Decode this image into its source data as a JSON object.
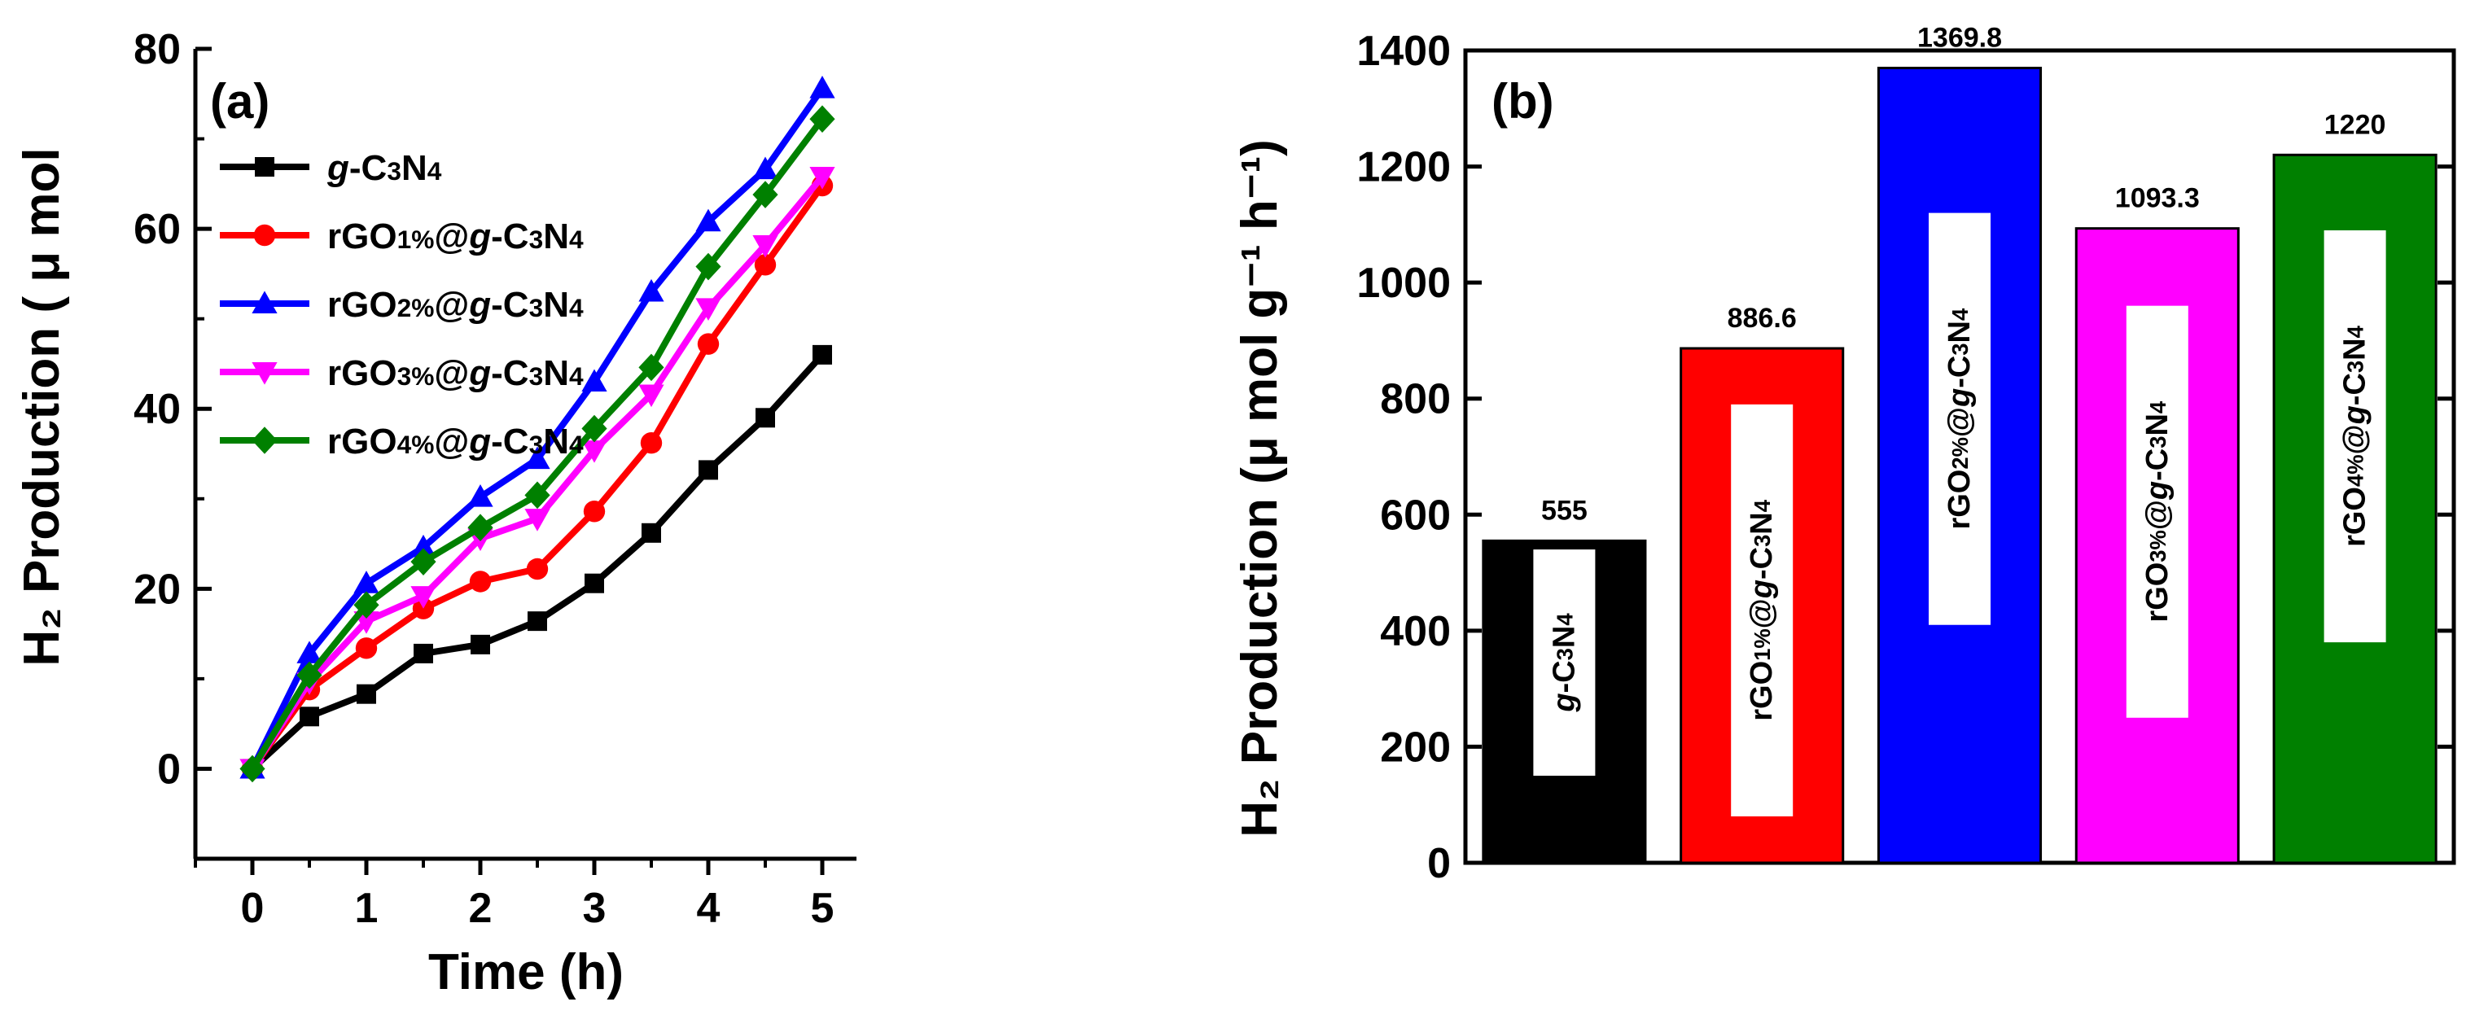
{
  "chart_data": [
    {
      "type": "line",
      "panel_label": "(a)",
      "xlabel": "Time (h)",
      "ylabel": "H₂ Production ( μ mol",
      "xlim": [
        -0.5,
        5.3
      ],
      "ylim": [
        -10,
        80
      ],
      "xticks": [
        0,
        1,
        2,
        3,
        4,
        5
      ],
      "yticks": [
        0,
        20,
        40,
        60,
        80
      ],
      "x": [
        0,
        0.5,
        1,
        1.5,
        2,
        2.5,
        3,
        3.5,
        4,
        4.5,
        5
      ],
      "legend_position": "top-left",
      "series": [
        {
          "name": "g-C3N4",
          "color": "#000000",
          "marker": "square",
          "values": [
            0,
            5.8,
            8.3,
            12.8,
            13.8,
            16.4,
            20.6,
            26.2,
            33.2,
            39.0,
            46.0
          ]
        },
        {
          "name": "rGO1%@g-C3N4",
          "color": "#ff0000",
          "marker": "circle",
          "values": [
            0,
            8.8,
            13.4,
            17.8,
            20.8,
            22.2,
            28.6,
            36.2,
            47.2,
            56.0,
            64.8
          ]
        },
        {
          "name": "rGO2%@g-C3N4",
          "color": "#0000ff",
          "marker": "triangle-up",
          "values": [
            0,
            12.8,
            20.6,
            24.6,
            30.2,
            34.4,
            43.0,
            53.0,
            60.8,
            66.6,
            75.6
          ]
        },
        {
          "name": "rGO3%@g-C3N4",
          "color": "#ff00ff",
          "marker": "triangle-down",
          "values": [
            0,
            9.6,
            16.4,
            19.2,
            25.6,
            27.8,
            35.4,
            41.6,
            51.2,
            58.2,
            65.8
          ]
        },
        {
          "name": "rGO4%@g-C3N4",
          "color": "#008000",
          "marker": "diamond",
          "values": [
            0,
            10.4,
            18.2,
            23.0,
            26.8,
            30.4,
            37.8,
            44.6,
            55.8,
            63.8,
            72.2
          ]
        }
      ],
      "legend_labels": [
        [
          {
            "t": "g",
            "i": true
          },
          {
            "t": "-C"
          },
          {
            "t": "3",
            "s": true
          },
          {
            "t": "N"
          },
          {
            "t": "4",
            "s": true
          }
        ],
        [
          {
            "t": "rGO"
          },
          {
            "t": "1%",
            "s": true
          },
          {
            "t": "@"
          },
          {
            "t": "g",
            "i": true
          },
          {
            "t": "-C"
          },
          {
            "t": "3",
            "s": true
          },
          {
            "t": "N"
          },
          {
            "t": "4",
            "s": true
          }
        ],
        [
          {
            "t": "rGO"
          },
          {
            "t": "2%",
            "s": true
          },
          {
            "t": "@"
          },
          {
            "t": "g",
            "i": true
          },
          {
            "t": "-C"
          },
          {
            "t": "3",
            "s": true
          },
          {
            "t": "N"
          },
          {
            "t": "4",
            "s": true
          }
        ],
        [
          {
            "t": "rGO"
          },
          {
            "t": "3%",
            "s": true
          },
          {
            "t": "@"
          },
          {
            "t": "g",
            "i": true
          },
          {
            "t": "-C"
          },
          {
            "t": "3",
            "s": true
          },
          {
            "t": "N"
          },
          {
            "t": "4",
            "s": true
          }
        ],
        [
          {
            "t": "rGO"
          },
          {
            "t": "4%",
            "s": true
          },
          {
            "t": "@"
          },
          {
            "t": "g",
            "i": true
          },
          {
            "t": "-C"
          },
          {
            "t": "3",
            "s": true
          },
          {
            "t": "N"
          },
          {
            "t": "4",
            "s": true
          }
        ]
      ]
    },
    {
      "type": "bar",
      "panel_label": "(b)",
      "xlabel": "",
      "ylabel": "H₂ Production (μ mol g⁻¹ h⁻¹)",
      "ylim": [
        0,
        1400
      ],
      "yticks": [
        0,
        200,
        400,
        600,
        800,
        1000,
        1200,
        1400
      ],
      "categories": [
        "g-C3N4",
        "rGO1%@g-C3N4",
        "rGO2%@g-C3N4",
        "rGO3%@g-C3N4",
        "rGO4%@g-C3N4"
      ],
      "values": [
        555,
        886.6,
        1369.8,
        1093.3,
        1220
      ],
      "value_labels": [
        "555",
        "886.6",
        "1369.8",
        "1093.3",
        "1220"
      ],
      "colors": [
        "#000000",
        "#ff0000",
        "#0000ff",
        "#ff00ff",
        "#008000"
      ],
      "bar_labels": [
        [
          {
            "t": "g",
            "i": true
          },
          {
            "t": "-C"
          },
          {
            "t": "3",
            "s": true
          },
          {
            "t": "N"
          },
          {
            "t": "4",
            "s": true
          }
        ],
        [
          {
            "t": "rGO"
          },
          {
            "t": "1%",
            "s": true
          },
          {
            "t": "@"
          },
          {
            "t": "g",
            "i": true
          },
          {
            "t": "-C"
          },
          {
            "t": "3",
            "s": true
          },
          {
            "t": "N"
          },
          {
            "t": "4",
            "s": true
          }
        ],
        [
          {
            "t": "rGO"
          },
          {
            "t": "2%",
            "s": true
          },
          {
            "t": "@"
          },
          {
            "t": "g",
            "i": true
          },
          {
            "t": "-C"
          },
          {
            "t": "3",
            "s": true
          },
          {
            "t": "N"
          },
          {
            "t": "4",
            "s": true
          }
        ],
        [
          {
            "t": "rGO"
          },
          {
            "t": "3%",
            "s": true
          },
          {
            "t": "@"
          },
          {
            "t": "g",
            "i": true
          },
          {
            "t": "-C"
          },
          {
            "t": "3",
            "s": true
          },
          {
            "t": "N"
          },
          {
            "t": "4",
            "s": true
          }
        ],
        [
          {
            "t": "rGO"
          },
          {
            "t": "4%",
            "s": true
          },
          {
            "t": "@"
          },
          {
            "t": "g",
            "i": true
          },
          {
            "t": "-C"
          },
          {
            "t": "3",
            "s": true
          },
          {
            "t": "N"
          },
          {
            "t": "4",
            "s": true
          }
        ]
      ],
      "bar_label_range": [
        [
          150,
          540
        ],
        [
          80,
          790
        ],
        [
          410,
          1120
        ],
        [
          250,
          960
        ],
        [
          380,
          1090
        ]
      ]
    }
  ]
}
